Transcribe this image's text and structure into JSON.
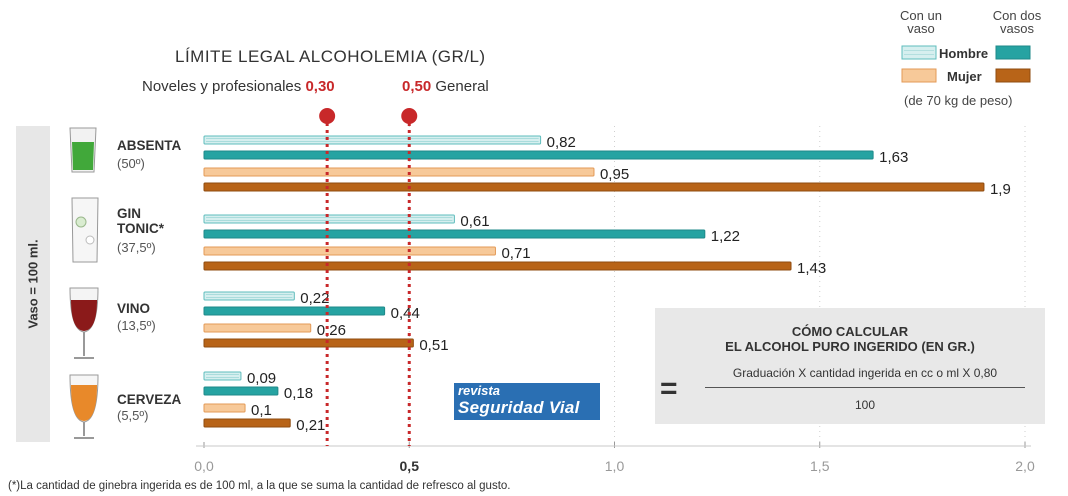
{
  "header": {
    "title": "LÍMITE LEGAL ALCOHOLEMIA (GR/L)",
    "limit_novel_label": "Noveles y profesionales",
    "limit_novel_value": "0,30",
    "limit_general_value": "0,50",
    "limit_general_label": "General"
  },
  "legend": {
    "one_glass": "Con un vaso",
    "two_glasses": "Con dos vasos",
    "man": "Hombre",
    "woman": "Mujer",
    "note": "(de 70 kg de peso)"
  },
  "side_label": "Vaso = 100 ml.",
  "drinks": [
    {
      "name": "ABSENTA",
      "degree": "(50º)"
    },
    {
      "name": "GIN TONIC*",
      "degree": "(37,5º)"
    },
    {
      "name": "VINO",
      "degree": "(13,5º)"
    },
    {
      "name": "CERVEZA",
      "degree": "(5,5º)"
    }
  ],
  "formula": {
    "title_line1": "CÓMO CALCULAR",
    "title_line2": "EL ALCOHOL PURO INGERIDO (EN GR.)",
    "numerator": "Graduación X cantidad ingerida en cc o ml X 0,80",
    "denominator": "100",
    "equals": "="
  },
  "logo": {
    "line1": "revista",
    "line2": "Seguridad Vial"
  },
  "footnote": "(*)La cantidad de ginebra ingerida es de 100 ml, a la que se suma la cantidad de refresco al gusto.",
  "colors": {
    "man_one": "#d6efef",
    "man_two": "#26a3a2",
    "woman_one": "#f7c999",
    "woman_two": "#b86418",
    "limit": "#c8282a",
    "grid": "#cfcfcf"
  },
  "chart_data": {
    "type": "bar",
    "orientation": "horizontal",
    "categories": [
      "ABSENTA",
      "GIN TONIC*",
      "VINO",
      "CERVEZA"
    ],
    "series": [
      {
        "name": "Hombre",
        "glasses": 1,
        "values": [
          0.82,
          0.61,
          0.22,
          0.09
        ],
        "labels": [
          "0,82",
          "0,61",
          "0,22",
          "0,09"
        ]
      },
      {
        "name": "Hombre",
        "glasses": 2,
        "values": [
          1.63,
          1.22,
          0.44,
          0.18
        ],
        "labels": [
          "1,63",
          "1,22",
          "0,44",
          "0,18"
        ]
      },
      {
        "name": "Mujer",
        "glasses": 1,
        "values": [
          0.95,
          0.71,
          0.26,
          0.1
        ],
        "labels": [
          "0,95",
          "0,71",
          "0,26",
          "0,1"
        ]
      },
      {
        "name": "Mujer",
        "glasses": 2,
        "values": [
          1.9,
          1.43,
          0.51,
          0.21
        ],
        "labels": [
          "1,9",
          "1,43",
          "0,51",
          "0,21"
        ]
      }
    ],
    "xlim": [
      0,
      2.0
    ],
    "x_ticks": [
      0,
      0.5,
      1.0,
      1.5,
      2.0
    ],
    "x_tick_labels": [
      "0,0",
      "0,5",
      "1,0",
      "1,5",
      "2,0"
    ],
    "reference_lines": [
      0.3,
      0.5
    ],
    "grid": true,
    "legend_position": "top-right"
  }
}
